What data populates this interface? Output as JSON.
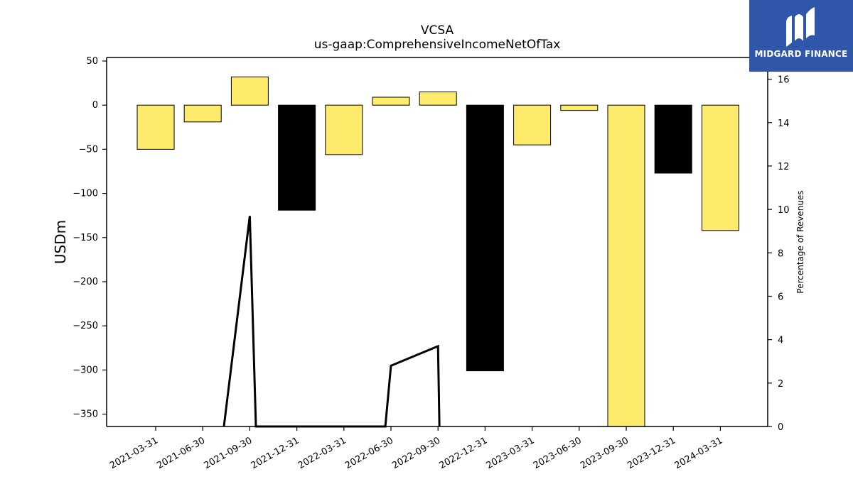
{
  "chart_data": {
    "type": "bar",
    "title": "VCSA",
    "subtitle": "us-gaap:ComprehensiveIncomeNetOfTax",
    "ylabel": "USDm",
    "y2label": "Percentage of Revenues",
    "categories": [
      "2021-03-31",
      "2021-06-30",
      "2021-09-30",
      "2021-12-31",
      "2022-03-31",
      "2022-06-30",
      "2022-09-30",
      "2022-12-31",
      "2023-03-31",
      "2023-06-30",
      "2023-09-30",
      "2023-12-31",
      "2024-03-31"
    ],
    "values": [
      -50,
      -19,
      32,
      -119,
      -56,
      9,
      15,
      -301,
      -45,
      -6,
      -364,
      -77,
      -142
    ],
    "bar_colors": [
      "#ffeb6b",
      "#ffeb6b",
      "#ffeb6b",
      "#000000",
      "#ffeb6b",
      "#ffeb6b",
      "#ffeb6b",
      "#000000",
      "#ffeb6b",
      "#ffeb6b",
      "#ffeb6b",
      "#000000",
      "#ffeb6b"
    ],
    "line_series": {
      "name": "Percentage of Revenues",
      "color": "#000000",
      "points": [
        {
          "x": 1.45,
          "y": 0
        },
        {
          "x": 2.0,
          "y": 9.7
        },
        {
          "x": 2.13,
          "y": 0
        },
        {
          "x": 4.88,
          "y": 0
        },
        {
          "x": 5.0,
          "y": 2.8
        },
        {
          "x": 6.0,
          "y": 3.7
        },
        {
          "x": 6.03,
          "y": 0
        }
      ]
    },
    "ylim": [
      -364,
      54
    ],
    "y2lim": [
      0,
      17
    ],
    "yticks": [
      50,
      0,
      -50,
      -100,
      -150,
      -200,
      -250,
      -300,
      -350
    ],
    "y2ticks": [
      0,
      2,
      4,
      6,
      8,
      10,
      12,
      14,
      16
    ],
    "grid": false,
    "legend": "none"
  },
  "logo": {
    "text": "MIDGARD FINANCE",
    "bg": "#2f56a8"
  }
}
